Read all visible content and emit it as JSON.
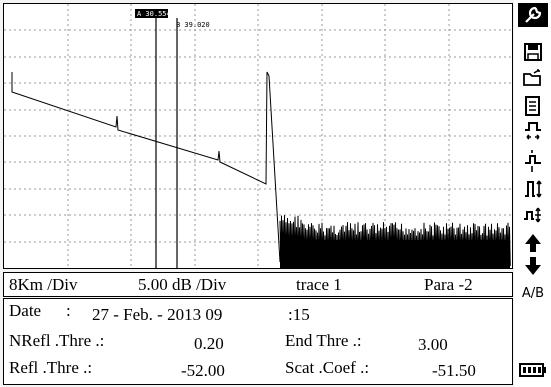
{
  "markers": {
    "a_label": "A 30.554",
    "b_label": "B 39.020"
  },
  "scale": {
    "distance_div": "8Km /Div",
    "db_div": "5.00 dB /Div",
    "trace": "trace 1",
    "para": "Para -2"
  },
  "info": {
    "date_label": "Date",
    "date_colon": ":",
    "date_value": "27 - Feb. - 2013 09",
    "time_value": ":15",
    "nrefl_label": "NRefl .Thre .:",
    "nrefl_value": "0.20",
    "end_label": "End Thre .:",
    "end_value": "3.00",
    "refl_label": "Refl .Thre .:",
    "refl_value": "-52.00",
    "scat_label": "Scat .Coef .:",
    "scat_value": "-51.50"
  },
  "toolbar": {
    "ab_label": "A/B"
  },
  "colors": {
    "trace": "#000000",
    "grid": "#9a9a9a",
    "marker_flag_bg": "#000000"
  }
}
